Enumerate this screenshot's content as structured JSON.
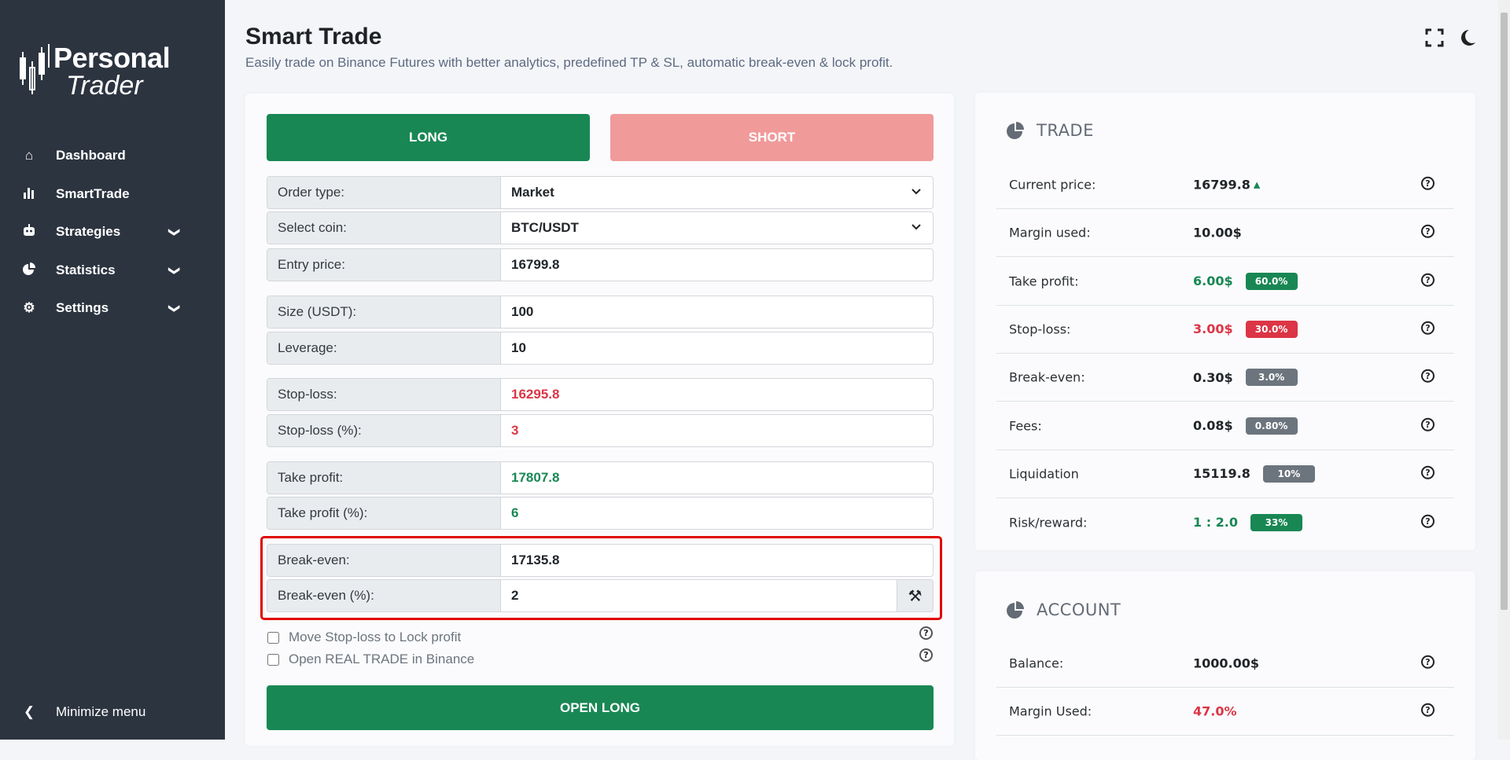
{
  "brand": {
    "line1": "Personal",
    "line2": "Trader"
  },
  "sidebar": {
    "items": [
      {
        "label": "Dashboard",
        "icon": "home-icon"
      },
      {
        "label": "SmartTrade",
        "icon": "bar-chart-icon"
      },
      {
        "label": "Strategies",
        "icon": "robot-icon",
        "expandable": true
      },
      {
        "label": "Statistics",
        "icon": "pie-chart-icon",
        "expandable": true
      },
      {
        "label": "Settings",
        "icon": "gear-icon",
        "expandable": true
      }
    ],
    "minimize": "Minimize menu"
  },
  "header": {
    "title": "Smart Trade",
    "subtitle": "Easily trade on Binance Futures with better analytics, predefined TP & SL, automatic break-even & lock profit."
  },
  "form": {
    "long_label": "LONG",
    "short_label": "SHORT",
    "order_type": {
      "label": "Order type:",
      "value": "Market"
    },
    "coin": {
      "label": "Select coin:",
      "value": "BTC/USDT"
    },
    "entry": {
      "label": "Entry price:",
      "value": "16799.8"
    },
    "size": {
      "label": "Size (USDT):",
      "value": "100"
    },
    "leverage": {
      "label": "Leverage:",
      "value": "10"
    },
    "sl": {
      "label": "Stop-loss:",
      "value": "16295.8"
    },
    "sl_pct": {
      "label": "Stop-loss (%):",
      "value": "3"
    },
    "tp": {
      "label": "Take profit:",
      "value": "17807.8"
    },
    "tp_pct": {
      "label": "Take profit (%):",
      "value": "6"
    },
    "be": {
      "label": "Break-even:",
      "value": "17135.8"
    },
    "be_pct": {
      "label": "Break-even (%):",
      "value": "2"
    },
    "lock_profit": "Move Stop-loss to Lock profit",
    "real_trade": "Open REAL TRADE in Binance",
    "open_label": "OPEN LONG"
  },
  "trade": {
    "title": "TRADE",
    "rows": [
      {
        "label": "Current price:",
        "value": "16799.8"
      },
      {
        "label": "Margin used:",
        "value": "10.00$"
      },
      {
        "label": "Take profit:",
        "value": "6.00$",
        "badge": "60.0%"
      },
      {
        "label": "Stop-loss:",
        "value": "3.00$",
        "badge": "30.0%"
      },
      {
        "label": "Break-even:",
        "value": "0.30$",
        "badge": "3.0%"
      },
      {
        "label": "Fees:",
        "value": "0.08$",
        "badge": "0.80%"
      },
      {
        "label": "Liquidation",
        "value": "15119.8",
        "badge": "10%"
      },
      {
        "label": "Risk/reward:",
        "value": "1 : 2.0",
        "badge": "33%"
      }
    ]
  },
  "account": {
    "title": "ACCOUNT",
    "rows": [
      {
        "label": "Balance:",
        "value": "1000.00$"
      },
      {
        "label": "Margin Used:",
        "value": "47.0%"
      }
    ]
  },
  "colors": {
    "green": "#198754",
    "red": "#dc3545",
    "short_disabled": "#f09a9a",
    "gray_badge": "#6c757d",
    "sidebar": "#2c3440",
    "highlight": "#e00000"
  }
}
